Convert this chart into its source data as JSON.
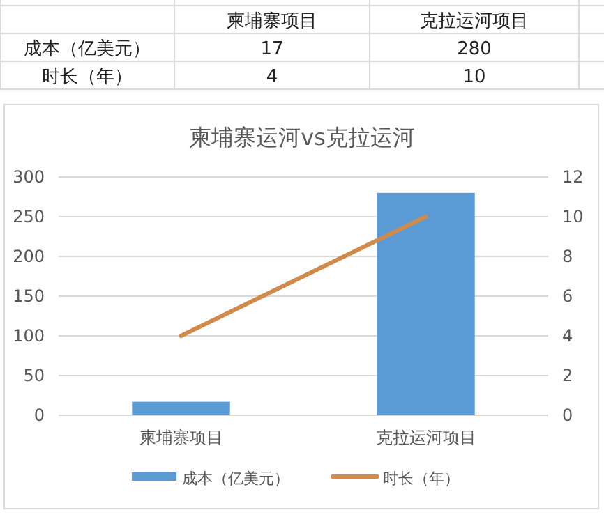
{
  "chart_data": {
    "type": "bar",
    "title": "柬埔寨运河vs克拉运河",
    "categories": [
      "柬埔寨项目",
      "克拉运河项目"
    ],
    "series": [
      {
        "name": "成本（亿美元）",
        "color": "#5b9bd5",
        "values": [
          17,
          280
        ]
      },
      {
        "name": "时长（年）",
        "type": "line",
        "axis": "y2",
        "color": "#d08a4c",
        "values": [
          4,
          10
        ]
      }
    ],
    "ylim": [
      0,
      300
    ],
    "yticks": [
      0,
      50,
      100,
      150,
      200,
      250,
      300
    ],
    "y2lim": [
      0,
      12
    ],
    "y2ticks": [
      0,
      2,
      4,
      6,
      8,
      10,
      12
    ],
    "grid": "y",
    "legend": "bottom",
    "data_labels": true
  }
}
